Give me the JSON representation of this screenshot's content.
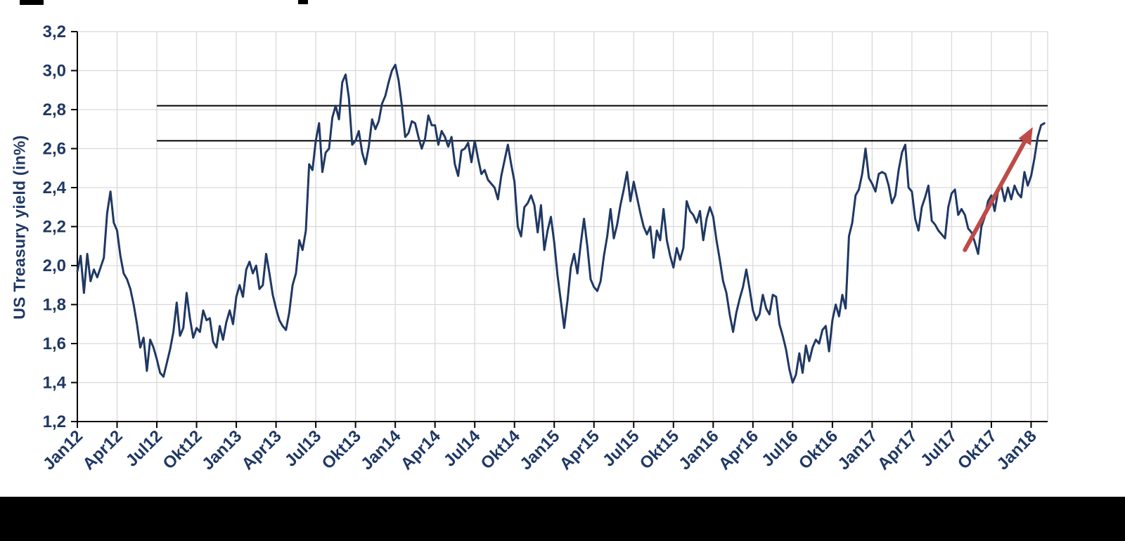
{
  "page": {
    "background_color": "#ffffff",
    "footer_bar_color": "#000000"
  },
  "chart_data": {
    "type": "line",
    "title": "",
    "xlabel": "",
    "ylabel": "US Treasury yield (in%)",
    "ylim": [
      1.2,
      3.2
    ],
    "y_tick_step": 0.2,
    "y_tick_labels": [
      "1,2",
      "1,4",
      "1,6",
      "1,8",
      "2,0",
      "2,2",
      "2,4",
      "2,6",
      "2,8",
      "3,0",
      "3,2"
    ],
    "x_tick_labels": [
      "Jan12",
      "Apr12",
      "Jul12",
      "Okt12",
      "Jan13",
      "Apr13",
      "Jul13",
      "Okt13",
      "Jan14",
      "Apr14",
      "Jul14",
      "Okt14",
      "Jan15",
      "Apr15",
      "Jul15",
      "Okt15",
      "Jan16",
      "Apr16",
      "Jul16",
      "Okt16",
      "Jan17",
      "Apr17",
      "Jul17",
      "Okt17",
      "Jan18"
    ],
    "x_tick_index_step": 12,
    "grid": {
      "vertical": true,
      "horizontal": true,
      "color": "#D9D9D9"
    },
    "axis_color": "#000000",
    "label_color": "#1F3864",
    "legend": "none",
    "series": [
      {
        "name": "US Treasury yield",
        "color": "#1F3864",
        "values": [
          1.97,
          2.05,
          1.86,
          2.06,
          1.92,
          1.98,
          1.94,
          1.99,
          2.04,
          2.27,
          2.38,
          2.22,
          2.18,
          2.05,
          1.96,
          1.93,
          1.88,
          1.8,
          1.7,
          1.58,
          1.63,
          1.46,
          1.62,
          1.58,
          1.52,
          1.45,
          1.43,
          1.5,
          1.57,
          1.66,
          1.81,
          1.64,
          1.68,
          1.86,
          1.73,
          1.63,
          1.68,
          1.66,
          1.77,
          1.72,
          1.73,
          1.61,
          1.58,
          1.69,
          1.62,
          1.71,
          1.77,
          1.7,
          1.84,
          1.9,
          1.84,
          1.98,
          2.02,
          1.96,
          2.0,
          1.88,
          1.9,
          2.06,
          1.96,
          1.85,
          1.78,
          1.72,
          1.69,
          1.67,
          1.76,
          1.9,
          1.96,
          2.13,
          2.08,
          2.18,
          2.52,
          2.49,
          2.64,
          2.73,
          2.48,
          2.58,
          2.6,
          2.76,
          2.82,
          2.75,
          2.94,
          2.98,
          2.86,
          2.62,
          2.64,
          2.69,
          2.58,
          2.52,
          2.61,
          2.75,
          2.7,
          2.74,
          2.83,
          2.87,
          2.94,
          3.0,
          3.03,
          2.95,
          2.82,
          2.66,
          2.68,
          2.74,
          2.73,
          2.66,
          2.6,
          2.65,
          2.77,
          2.72,
          2.72,
          2.62,
          2.69,
          2.66,
          2.61,
          2.66,
          2.52,
          2.46,
          2.59,
          2.6,
          2.63,
          2.53,
          2.64,
          2.55,
          2.47,
          2.49,
          2.44,
          2.42,
          2.4,
          2.34,
          2.46,
          2.54,
          2.62,
          2.52,
          2.43,
          2.2,
          2.15,
          2.3,
          2.32,
          2.36,
          2.31,
          2.17,
          2.31,
          2.08,
          2.18,
          2.25,
          2.12,
          1.95,
          1.82,
          1.68,
          1.82,
          1.99,
          2.06,
          1.96,
          2.11,
          2.24,
          2.1,
          1.93,
          1.89,
          1.87,
          1.92,
          2.05,
          2.15,
          2.29,
          2.14,
          2.21,
          2.31,
          2.39,
          2.48,
          2.33,
          2.43,
          2.35,
          2.27,
          2.2,
          2.16,
          2.2,
          2.04,
          2.18,
          2.13,
          2.29,
          2.13,
          2.05,
          1.99,
          2.09,
          2.03,
          2.09,
          2.33,
          2.28,
          2.26,
          2.22,
          2.28,
          2.13,
          2.24,
          2.3,
          2.25,
          2.13,
          2.03,
          1.92,
          1.86,
          1.75,
          1.66,
          1.76,
          1.83,
          1.89,
          1.98,
          1.88,
          1.77,
          1.72,
          1.75,
          1.85,
          1.78,
          1.75,
          1.85,
          1.84,
          1.7,
          1.64,
          1.57,
          1.47,
          1.4,
          1.44,
          1.55,
          1.45,
          1.59,
          1.51,
          1.58,
          1.62,
          1.6,
          1.67,
          1.69,
          1.56,
          1.72,
          1.8,
          1.74,
          1.85,
          1.78,
          2.15,
          2.22,
          2.36,
          2.39,
          2.47,
          2.6,
          2.45,
          2.42,
          2.38,
          2.47,
          2.48,
          2.47,
          2.41,
          2.32,
          2.36,
          2.49,
          2.58,
          2.62,
          2.4,
          2.38,
          2.24,
          2.18,
          2.3,
          2.35,
          2.41,
          2.23,
          2.21,
          2.18,
          2.16,
          2.14,
          2.3,
          2.37,
          2.39,
          2.26,
          2.29,
          2.26,
          2.19,
          2.17,
          2.12,
          2.06,
          2.2,
          2.25,
          2.33,
          2.36,
          2.28,
          2.38,
          2.41,
          2.33,
          2.4,
          2.34,
          2.41,
          2.37,
          2.35,
          2.48,
          2.41,
          2.46,
          2.55,
          2.66,
          2.72,
          2.73
        ]
      }
    ],
    "reference_lines": [
      {
        "value": 2.82,
        "from_index": 24,
        "color": "#000000"
      },
      {
        "value": 2.64,
        "from_index": 24,
        "color": "#000000"
      }
    ],
    "annotation_arrow": {
      "from_index": 268,
      "from_value": 2.08,
      "to_index": 288.5,
      "to_value": 2.71,
      "color": "#BE4B48"
    }
  }
}
